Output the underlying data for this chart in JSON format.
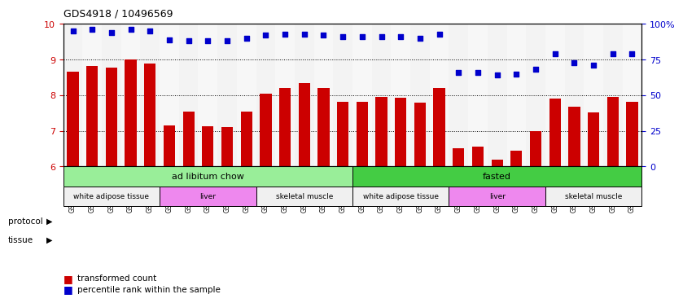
{
  "title": "GDS4918 / 10496569",
  "samples": [
    "GSM1131278",
    "GSM1131279",
    "GSM1131280",
    "GSM1131281",
    "GSM1131282",
    "GSM1131283",
    "GSM1131284",
    "GSM1131285",
    "GSM1131286",
    "GSM1131287",
    "GSM1131288",
    "GSM1131289",
    "GSM1131290",
    "GSM1131291",
    "GSM1131292",
    "GSM1131293",
    "GSM1131294",
    "GSM1131295",
    "GSM1131296",
    "GSM1131297",
    "GSM1131298",
    "GSM1131299",
    "GSM1131300",
    "GSM1131301",
    "GSM1131302",
    "GSM1131303",
    "GSM1131304",
    "GSM1131305",
    "GSM1131306",
    "GSM1131307"
  ],
  "bar_values": [
    8.65,
    8.82,
    8.78,
    9.0,
    8.88,
    7.15,
    7.55,
    7.12,
    7.1,
    7.55,
    8.05,
    8.2,
    8.35,
    8.2,
    7.82,
    7.82,
    7.95,
    7.93,
    7.78,
    8.2,
    6.5,
    6.55,
    6.2,
    6.45,
    7.0,
    7.9,
    7.68,
    7.52,
    7.95,
    7.82
  ],
  "percentile_values": [
    95,
    96,
    94,
    96,
    95,
    89,
    88,
    88,
    88,
    90,
    92,
    93,
    93,
    92,
    91,
    91,
    91,
    91,
    90,
    93,
    66,
    66,
    64,
    65,
    68,
    79,
    73,
    71,
    79,
    79
  ],
  "bar_color": "#cc0000",
  "dot_color": "#0000cc",
  "ylim_left": [
    6,
    10
  ],
  "ylim_right": [
    0,
    100
  ],
  "yticks_left": [
    6,
    7,
    8,
    9,
    10
  ],
  "yticks_right": [
    0,
    25,
    50,
    75,
    100
  ],
  "protocol_spans": [
    {
      "label": "ad libitum chow",
      "start": 0,
      "end": 15,
      "color": "#99ee99"
    },
    {
      "label": "fasted",
      "start": 15,
      "end": 30,
      "color": "#44cc44"
    }
  ],
  "tissue_spans": [
    {
      "label": "white adipose tissue",
      "start": 0,
      "end": 5,
      "color": "#f0f0f0"
    },
    {
      "label": "liver",
      "start": 5,
      "end": 10,
      "color": "#ee88ee"
    },
    {
      "label": "skeletal muscle",
      "start": 10,
      "end": 15,
      "color": "#f0f0f0"
    },
    {
      "label": "white adipose tissue",
      "start": 15,
      "end": 20,
      "color": "#f0f0f0"
    },
    {
      "label": "liver",
      "start": 20,
      "end": 25,
      "color": "#ee88ee"
    },
    {
      "label": "skeletal muscle",
      "start": 25,
      "end": 30,
      "color": "#f0f0f0"
    }
  ],
  "legend_items": [
    {
      "label": "transformed count",
      "color": "#cc0000"
    },
    {
      "label": "percentile rank within the sample",
      "color": "#0000cc"
    }
  ],
  "bg_colors": [
    "#e8e8e8",
    "#f0f0f0"
  ]
}
